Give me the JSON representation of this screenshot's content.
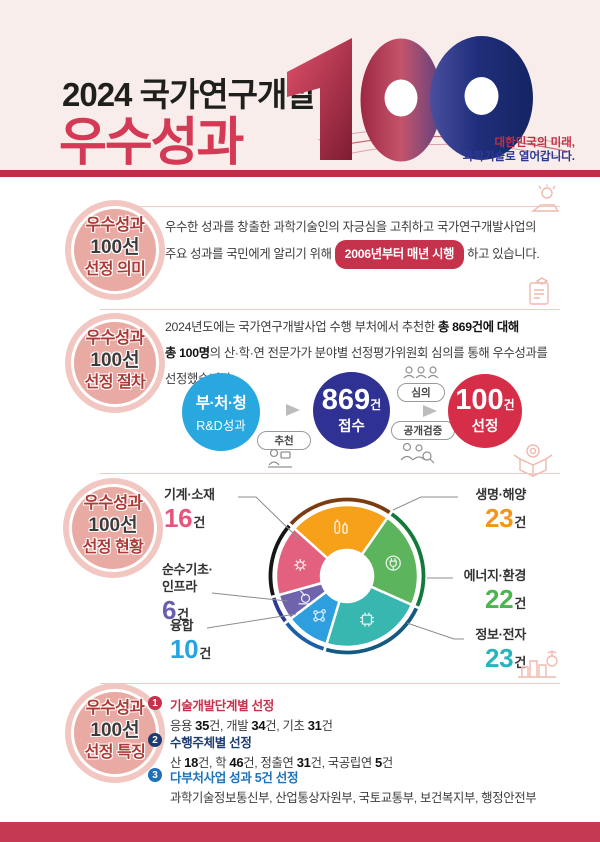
{
  "header": {
    "title_line1": "2024 국가연구개발",
    "title_line2": "우수성과",
    "emblem_number": "100",
    "tagline_line1": "대한민국의 미래,",
    "tagline_line2": "과학기술로 열어갑니다.",
    "colors": {
      "top_bar": "#bd2f49",
      "title_red": "#d43a55",
      "tagline_blue": "#2b3990"
    }
  },
  "s1": {
    "badge": {
      "line1": "우수성과",
      "line2": "100선",
      "line3": "선정 의미"
    },
    "line1": "우수한 성과를 창출한 과학기술인의 자긍심을 고취하고 국가연구개발사업의",
    "line2_before": "주요 성과를 국민에게 알리기 위해",
    "highlight": "2006년부터 매년 시행",
    "line2_after": "하고 있습니다."
  },
  "s2": {
    "badge": {
      "line1": "우수성과",
      "line2": "100선",
      "line3": "선정 절차"
    },
    "line1": "2024년도에는 국가연구개발사업 수행 부처에서 추천한 **총 869건에 대해**",
    "line2": "**총 100명**의 산·학·연 전문가가 분야별 선정평가위원회 심의를 통해 우수성과를",
    "line3": "선정했습니다.",
    "flow": {
      "step1_line1": "부·처·청",
      "step1_line2": "R&D성과",
      "arrow1_label": "추천",
      "step2_number": "869",
      "step2_unit": "건",
      "step2_label": "접수",
      "arrow2_top_label": "심의",
      "arrow2_bottom_label": "공개검증",
      "step3_number": "100",
      "step3_unit": "건",
      "step3_label": "선정"
    }
  },
  "s3": {
    "badge": {
      "line1": "우수성과",
      "line2": "100선",
      "line3": "선정 현황"
    }
  },
  "chart_data": {
    "type": "pie",
    "title": "우수성과 100선 선정 현황",
    "unit": "건",
    "total": 100,
    "start_angle_deg": -48,
    "inner_radius_ratio": 0.37,
    "legend_position": "callouts",
    "segments": [
      {
        "label": "생명·해양",
        "value": 23,
        "color": "#f7a11b",
        "arc_color": "#7c3c10",
        "icon": "bio"
      },
      {
        "label": "에너지·환경",
        "value": 22,
        "color": "#5cb45c",
        "arc_color": "#137a3a",
        "icon": "energy"
      },
      {
        "label": "정보·전자",
        "value": 23,
        "color": "#38b7b1",
        "arc_color": "#145a80",
        "icon": "chip"
      },
      {
        "label": "융합",
        "value": 10,
        "color": "#2d9fdf",
        "arc_color": "#1b5fa8",
        "icon": "molecule"
      },
      {
        "label": "순수기초·인프라",
        "value": 6,
        "color": "#7063ae",
        "arc_color": "#2b3990",
        "icon": "microscope",
        "label_lines": [
          "순수기초·",
          "인프라"
        ]
      },
      {
        "label": "기계·소재",
        "value": 16,
        "color": "#e4607f",
        "arc_color": "#161616",
        "icon": "gear"
      }
    ]
  },
  "s4": {
    "badge": {
      "line1": "우수성과",
      "line2": "100선",
      "line3": "선정 특징"
    },
    "items": [
      {
        "num": "1",
        "title": "기술개발단계별 선정",
        "body": "응용 **35**건, 개발 **34**건, 기초 **31**건"
      },
      {
        "num": "2",
        "title": "수행주체별 선정",
        "body": "산 **18**건, 학 **46**건, 정출연 **31**건, 국공립연 **5**건"
      },
      {
        "num": "3",
        "title": "다부처사업 성과 5건 선정",
        "body": "과학기술정보통신부, 산업통상자원부, 국토교통부, 보건복지부, 행정안전부"
      }
    ]
  }
}
